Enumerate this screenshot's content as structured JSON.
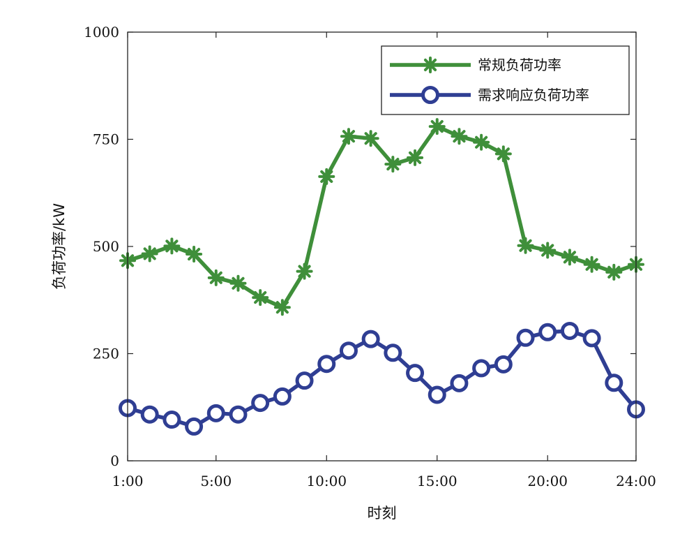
{
  "chart_data": {
    "type": "line",
    "title": "",
    "xlabel": "时刻",
    "ylabel": "负荷功率/kW",
    "xlim": [
      1,
      24
    ],
    "ylim": [
      0,
      1000
    ],
    "x": [
      1,
      2,
      3,
      4,
      5,
      6,
      7,
      8,
      9,
      10,
      11,
      12,
      13,
      14,
      15,
      16,
      17,
      18,
      19,
      20,
      21,
      22,
      23,
      24
    ],
    "x_ticks": [
      1,
      5,
      10,
      15,
      20,
      24
    ],
    "x_tick_labels": [
      "1:00",
      "5:00",
      "10:00",
      "15:00",
      "20:00",
      "24:00"
    ],
    "y_ticks": [
      0,
      250,
      500,
      750,
      1000
    ],
    "y_tick_labels": [
      "0",
      "250",
      "500",
      "750",
      "1000"
    ],
    "grid": false,
    "legend_position": "top-right",
    "series": [
      {
        "name": "常规负荷功率",
        "color": "#3f8f3a",
        "marker": "asterisk",
        "values": [
          467,
          483,
          501,
          482,
          427,
          414,
          381,
          358,
          442,
          663,
          757,
          752,
          692,
          707,
          780,
          757,
          743,
          716,
          502,
          491,
          475,
          458,
          440,
          458
        ]
      },
      {
        "name": "需求响应负荷功率",
        "color": "#2f3e93",
        "marker": "circle",
        "values": [
          123,
          108,
          96,
          80,
          111,
          108,
          135,
          150,
          187,
          226,
          257,
          284,
          252,
          205,
          154,
          181,
          216,
          225,
          287,
          300,
          303,
          286,
          182,
          120
        ]
      }
    ]
  }
}
